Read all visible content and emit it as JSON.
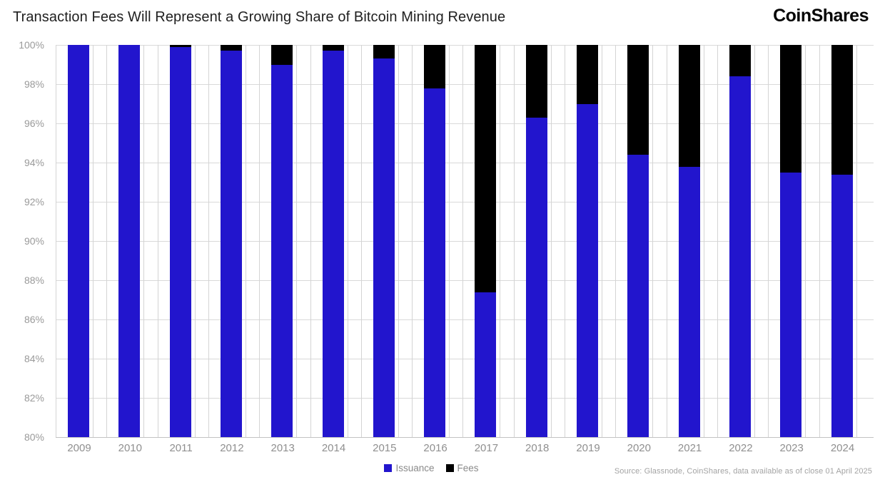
{
  "header": {
    "title": "Transaction Fees Will Represent a Growing Share of Bitcoin Mining Revenue",
    "logo": "CoinShares"
  },
  "chart_data": {
    "type": "bar",
    "stacked": true,
    "title": "Transaction Fees Will Represent a Growing Share of Bitcoin Mining Revenue",
    "categories": [
      "2009",
      "2010",
      "2011",
      "2012",
      "2013",
      "2014",
      "2015",
      "2016",
      "2017",
      "2018",
      "2019",
      "2020",
      "2021",
      "2022",
      "2023",
      "2024"
    ],
    "series": [
      {
        "name": "Issuance",
        "color": "#2215cd",
        "values": [
          100.0,
          100.0,
          99.9,
          99.7,
          99.0,
          99.7,
          99.3,
          97.8,
          87.4,
          96.3,
          97.0,
          94.4,
          93.8,
          98.4,
          93.5,
          93.4
        ]
      },
      {
        "name": "Fees",
        "color": "#000000",
        "values": [
          0.0,
          0.0,
          0.1,
          0.3,
          1.0,
          0.3,
          0.7,
          2.2,
          12.6,
          3.7,
          3.0,
          5.6,
          6.2,
          1.6,
          6.5,
          6.6
        ]
      }
    ],
    "xlabel": "",
    "ylabel": "",
    "ylim": [
      80,
      100
    ],
    "ytick_step": 2,
    "ytick_labels": [
      "100%",
      "98%",
      "96%",
      "94%",
      "92%",
      "90%",
      "88%",
      "86%",
      "84%",
      "82%",
      "80%"
    ],
    "grid": true,
    "legend_position": "bottom",
    "units": "percent of mining revenue"
  },
  "footer": {
    "source": "Source: Glassnode, CoinShares, data available as of close 01 April 2025"
  }
}
